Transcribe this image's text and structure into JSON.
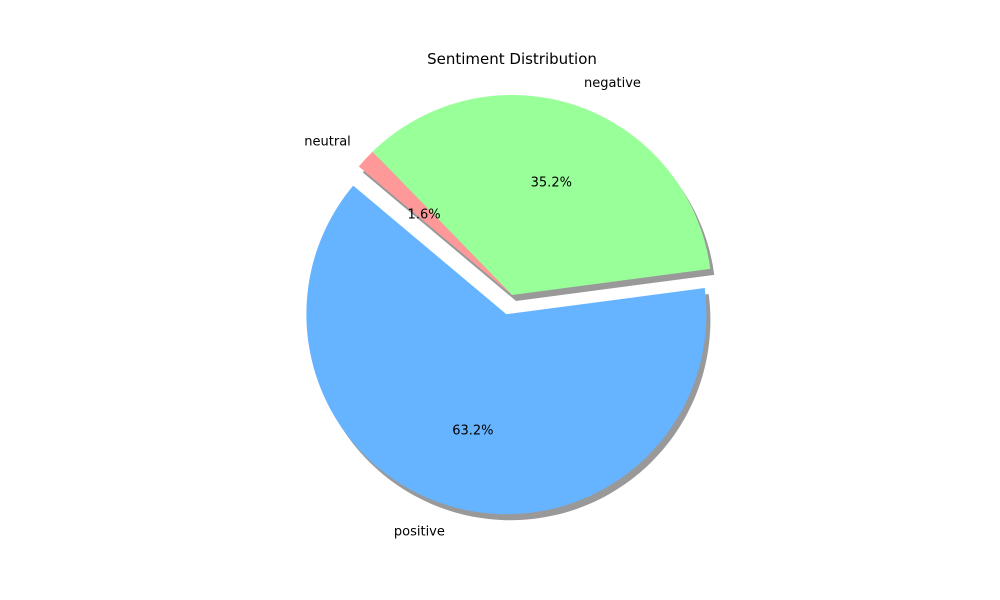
{
  "chart_data": {
    "type": "pie",
    "title": "Sentiment Distribution",
    "slices": [
      {
        "label": "positive",
        "value": 63.2,
        "pct_label": "63.2%",
        "color": "#66b3ff",
        "exploded": true
      },
      {
        "label": "negative",
        "value": 35.2,
        "pct_label": "35.2%",
        "color": "#99ff99",
        "exploded": false
      },
      {
        "label": "neutral",
        "value": 1.6,
        "pct_label": "1.6%",
        "color": "#ff9999",
        "exploded": false
      }
    ],
    "start_angle_deg": 140,
    "direction": "counterclockwise",
    "shadow": true,
    "legend": "none"
  }
}
